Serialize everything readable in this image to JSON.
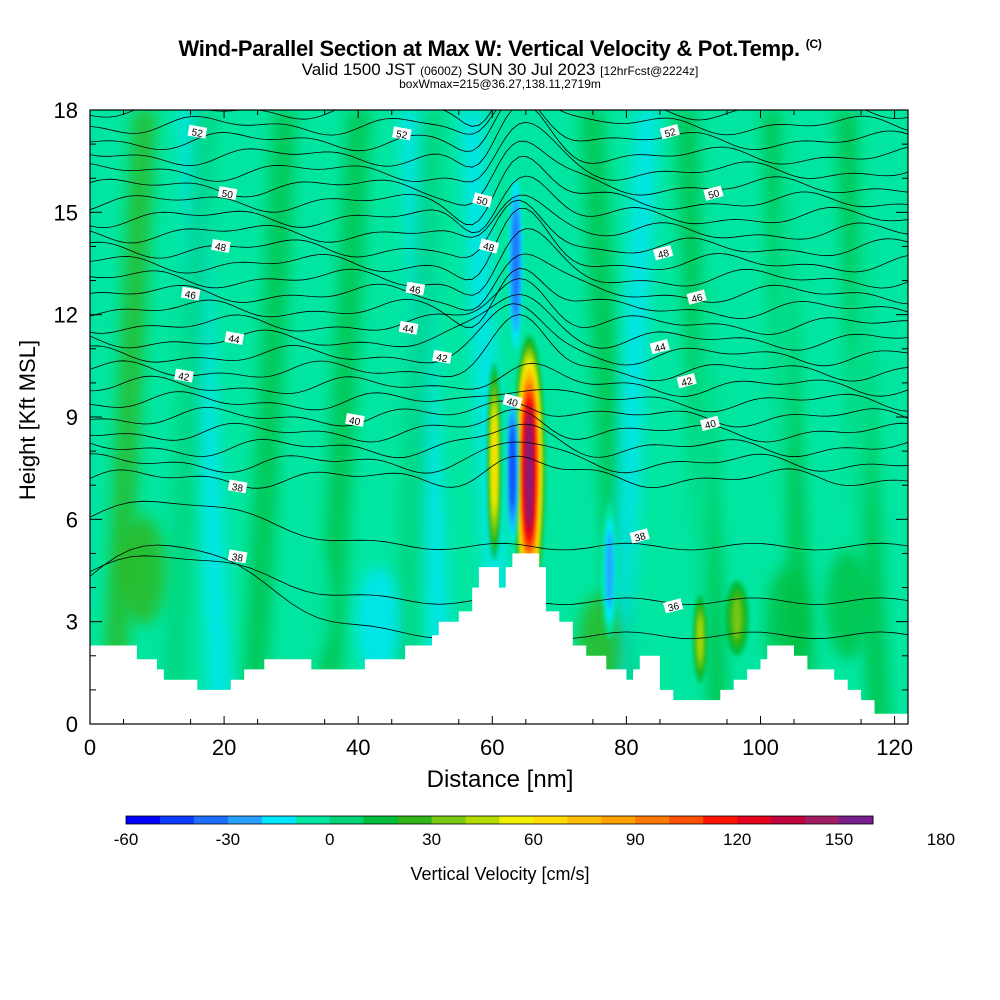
{
  "header": {
    "title": "Wind-Parallel Section at Max W: Vertical Velocity & Pot.Temp.",
    "title_mark": "(C)",
    "valid_prefix": "Valid 1500 JST",
    "valid_utc": "(0600Z)",
    "valid_date": "SUN 30 Jul 2023",
    "forecast": "[12hrFcst@2224z]",
    "box_info": "boxWmax=215@36.27,138.11,2719m"
  },
  "chart_data": {
    "type": "heatmap",
    "title": "Wind-Parallel Section at Max W: Vertical Velocity & Pot.Temp.",
    "xlabel": "Distance [nm]",
    "ylabel": "Height [Kft MSL]",
    "xlim": [
      0,
      122
    ],
    "ylim": [
      0,
      18
    ],
    "x_ticks": [
      0,
      20,
      40,
      60,
      80,
      100,
      120
    ],
    "y_ticks": [
      0,
      3,
      6,
      9,
      12,
      15,
      18
    ],
    "colorbar": {
      "label": "Vertical Velocity [cm/s]",
      "min": -60,
      "step": 10,
      "tick_labels": [
        "-60",
        "-30",
        "0",
        "30",
        "60",
        "90",
        "120",
        "150",
        "180"
      ],
      "colors": [
        "#0000ff",
        "#0a3cff",
        "#1e6eff",
        "#28a0ff",
        "#00e6ff",
        "#00e6a0",
        "#00d278",
        "#00be3c",
        "#32b414",
        "#78c814",
        "#b4dc00",
        "#f0f000",
        "#ffdc00",
        "#ffbe00",
        "#ffa000",
        "#ff7800",
        "#ff5000",
        "#ff1400",
        "#e6001e",
        "#be003c",
        "#a01e64",
        "#781e8c"
      ]
    },
    "theta_contour_labels": [
      {
        "x": 16,
        "y": 17.35,
        "text": "52"
      },
      {
        "x": 46.5,
        "y": 17.3,
        "text": "52"
      },
      {
        "x": 86.5,
        "y": 17.35,
        "text": "52"
      },
      {
        "x": 20.5,
        "y": 15.55,
        "text": "50"
      },
      {
        "x": 58.5,
        "y": 15.35,
        "text": "50"
      },
      {
        "x": 93,
        "y": 15.55,
        "text": "50"
      },
      {
        "x": 19.5,
        "y": 14.0,
        "text": "48"
      },
      {
        "x": 59.5,
        "y": 14.0,
        "text": "48"
      },
      {
        "x": 85.5,
        "y": 13.8,
        "text": "48"
      },
      {
        "x": 15,
        "y": 12.6,
        "text": "46"
      },
      {
        "x": 48.5,
        "y": 12.75,
        "text": "46"
      },
      {
        "x": 90.5,
        "y": 12.5,
        "text": "46"
      },
      {
        "x": 21.5,
        "y": 11.3,
        "text": "44"
      },
      {
        "x": 47.5,
        "y": 11.6,
        "text": "44"
      },
      {
        "x": 85,
        "y": 11.05,
        "text": "44"
      },
      {
        "x": 14,
        "y": 10.2,
        "text": "42"
      },
      {
        "x": 52.5,
        "y": 10.75,
        "text": "42"
      },
      {
        "x": 89,
        "y": 10.05,
        "text": "42"
      },
      {
        "x": 39.5,
        "y": 8.9,
        "text": "40"
      },
      {
        "x": 63,
        "y": 9.45,
        "text": "40"
      },
      {
        "x": 92.5,
        "y": 8.8,
        "text": "40"
      },
      {
        "x": 22,
        "y": 6.95,
        "text": "38"
      },
      {
        "x": 22,
        "y": 4.9,
        "text": "38"
      },
      {
        "x": 82,
        "y": 5.5,
        "text": "38"
      },
      {
        "x": 87,
        "y": 3.45,
        "text": "36"
      }
    ],
    "vertical_velocity_features": [
      {
        "x": 65.5,
        "y_bottom": 3.5,
        "y_top": 11.4,
        "width": 4.2,
        "peak": 150
      },
      {
        "x": 60.3,
        "y_bottom": 4.8,
        "y_top": 10.6,
        "width": 1.5,
        "peak": 60
      },
      {
        "x": 63.0,
        "y_bottom": 5.0,
        "y_top": 10.0,
        "width": 1.4,
        "peak": -50
      },
      {
        "x": 63.5,
        "y_bottom": 10.5,
        "y_top": 16.5,
        "width": 2.2,
        "peak": -40
      },
      {
        "x": 77.5,
        "y_bottom": 2.5,
        "y_top": 6.5,
        "width": 2.0,
        "peak": -30
      },
      {
        "x": 96.5,
        "y_bottom": 2.0,
        "y_top": 4.2,
        "width": 3.2,
        "peak": 30
      },
      {
        "x": 91.0,
        "y_bottom": 1.2,
        "y_top": 3.8,
        "width": 1.6,
        "peak": 40
      }
    ],
    "terrain_height_kft": [
      [
        0,
        2.3
      ],
      [
        5,
        2.3
      ],
      [
        7,
        1.9
      ],
      [
        10,
        1.6
      ],
      [
        11,
        1.3
      ],
      [
        15,
        1.3
      ],
      [
        16,
        1.0
      ],
      [
        20,
        1.0
      ],
      [
        21,
        1.3
      ],
      [
        23,
        1.6
      ],
      [
        26,
        1.9
      ],
      [
        32,
        1.9
      ],
      [
        33,
        1.6
      ],
      [
        40,
        1.6
      ],
      [
        41,
        1.9
      ],
      [
        45,
        1.9
      ],
      [
        47,
        2.3
      ],
      [
        51,
        2.6
      ],
      [
        52,
        3.0
      ],
      [
        54,
        3.0
      ],
      [
        55,
        3.3
      ],
      [
        57,
        4.0
      ],
      [
        58,
        4.6
      ],
      [
        60,
        4.6
      ],
      [
        61,
        4.0
      ],
      [
        62,
        4.6
      ],
      [
        63,
        5.0
      ],
      [
        66,
        5.0
      ],
      [
        67,
        4.6
      ],
      [
        68,
        3.3
      ],
      [
        70,
        3.0
      ],
      [
        72,
        2.3
      ],
      [
        74,
        2.0
      ],
      [
        77,
        1.6
      ],
      [
        80,
        1.3
      ],
      [
        81,
        1.6
      ],
      [
        82,
        2.0
      ],
      [
        84,
        2.0
      ],
      [
        85,
        1.0
      ],
      [
        87,
        0.7
      ],
      [
        93,
        0.7
      ],
      [
        94,
        1.0
      ],
      [
        96,
        1.3
      ],
      [
        98,
        1.6
      ],
      [
        100,
        1.9
      ],
      [
        101,
        2.3
      ],
      [
        104,
        2.3
      ],
      [
        105,
        2.0
      ],
      [
        107,
        1.6
      ],
      [
        111,
        1.3
      ],
      [
        113,
        1.0
      ],
      [
        115,
        0.7
      ],
      [
        117,
        0.3
      ],
      [
        122,
        0.3
      ]
    ]
  }
}
